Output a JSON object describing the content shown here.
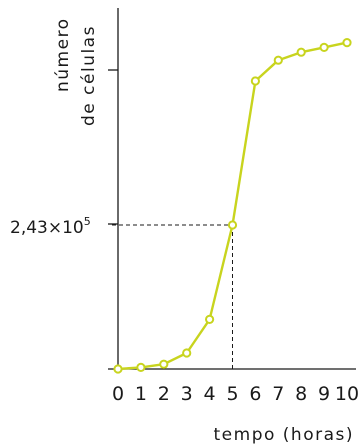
{
  "chart_data": {
    "type": "line",
    "title": "",
    "xlabel": "tempo (horas)",
    "ylabel_lines": [
      "número",
      "de células"
    ],
    "x": [
      0,
      1,
      2,
      3,
      4,
      5,
      6,
      7,
      8,
      9,
      10
    ],
    "x_tick_labels": [
      "0",
      "1",
      "2",
      "3",
      "4",
      "5",
      "6",
      "7",
      "8",
      "9",
      "10"
    ],
    "series": [
      {
        "values": [
          0,
          0.01,
          0.03,
          0.1,
          0.31,
          0.9,
          1.8,
          1.93,
          1.98,
          2.01,
          2.04
        ],
        "color": "#c8d41e"
      }
    ],
    "units": "×10^5 células",
    "annotation": {
      "x": 5,
      "y": 0.9,
      "mantissa": "2,43×10",
      "exponent": "5"
    },
    "grid": false,
    "legend": "none"
  }
}
